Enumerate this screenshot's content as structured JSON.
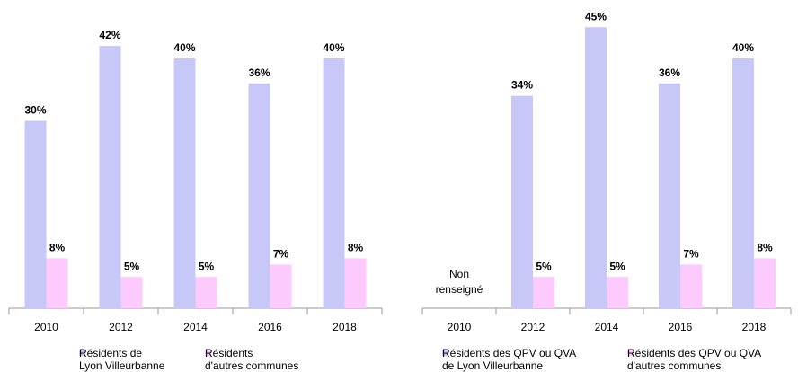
{
  "chart_data": [
    {
      "type": "bar",
      "categories": [
        "2010",
        "2012",
        "2014",
        "2016",
        "2018"
      ],
      "series": [
        {
          "name": "Résidents de\nLyon Villeurbanne",
          "color": "#c8c8f8",
          "values": [
            30,
            42,
            40,
            36,
            40
          ],
          "value_labels": [
            "30%",
            "42%",
            "40%",
            "36%",
            "40%"
          ]
        },
        {
          "name": "Résidents\nd'autres communes",
          "color": "#fccafc",
          "values": [
            8,
            5,
            5,
            7,
            8
          ],
          "value_labels": [
            "8%",
            "5%",
            "5%",
            "7%",
            "8%"
          ]
        }
      ]
    },
    {
      "type": "bar",
      "categories": [
        "2010",
        "2012",
        "2014",
        "2016",
        "2018"
      ],
      "series": [
        {
          "name": "Résidents des QPV ou QVA\nde Lyon Villeurbanne",
          "color": "#c8c8f8",
          "values": [
            null,
            34,
            45,
            36,
            40
          ],
          "value_labels": [
            null,
            "34%",
            "45%",
            "36%",
            "40%"
          ]
        },
        {
          "name": "Résidents des QPV ou QVA\nd'autres communes",
          "color": "#fccafc",
          "values": [
            null,
            5,
            5,
            7,
            8
          ],
          "value_labels": [
            null,
            "5%",
            "5%",
            "7%",
            "8%"
          ]
        }
      ],
      "annotation": "Non\nrenseigné"
    }
  ]
}
